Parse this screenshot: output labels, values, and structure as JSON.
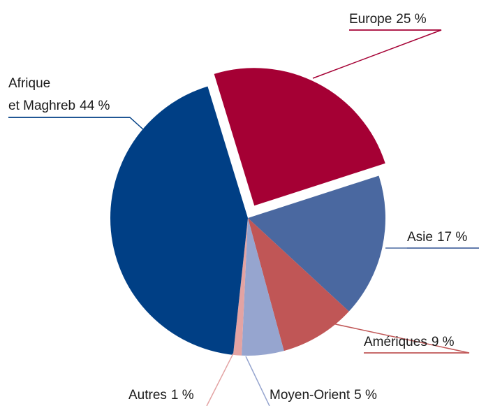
{
  "chart_data": {
    "type": "pie",
    "categories": [
      "Europe",
      "Asie",
      "Amériques",
      "Moyen-Orient",
      "Autres",
      "Afrique et Maghreb"
    ],
    "values": [
      25,
      17,
      9,
      5,
      1,
      44
    ],
    "value_labels": [
      "25 %",
      "17 %",
      "9 %",
      "5 %",
      "1 %",
      "44 %"
    ],
    "colors": [
      "#a50034",
      "#4a68a0",
      "#c05656",
      "#96a5cf",
      "#e3a3a3",
      "#003f85"
    ],
    "exploded": [
      true,
      false,
      false,
      false,
      false,
      false
    ]
  }
}
